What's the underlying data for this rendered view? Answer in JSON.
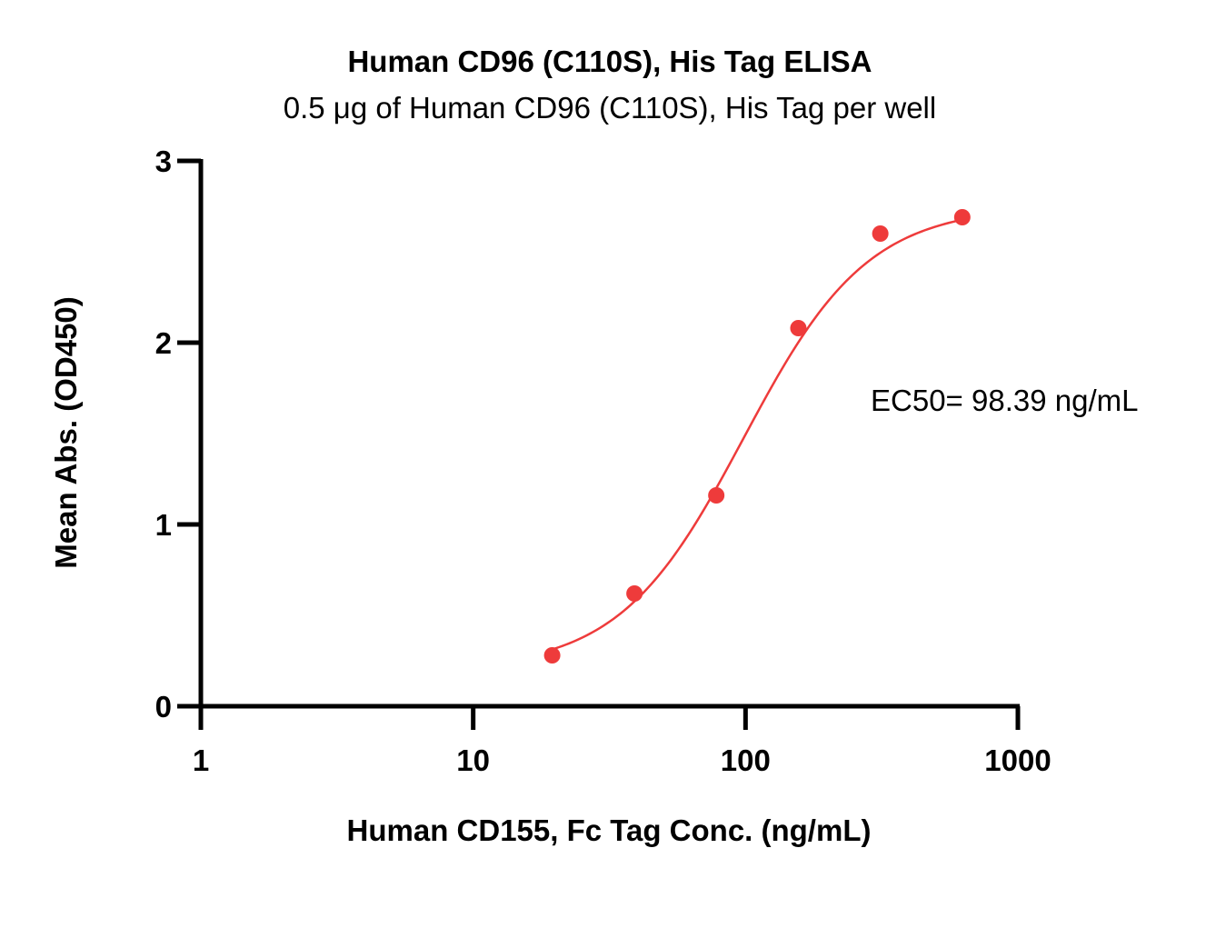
{
  "chart_data": {
    "type": "scatter",
    "title": "Human CD96 (C110S), His Tag ELISA",
    "subtitle": "0.5 μg of Human CD96 (C110S), His Tag per well",
    "xlabel": "Human CD155, Fc Tag Conc. (ng/mL)",
    "ylabel": "Mean Abs. (OD450)",
    "x_scale": "log",
    "xlim": [
      1,
      1000
    ],
    "ylim": [
      0,
      3
    ],
    "x_ticks": [
      "1",
      "10",
      "100",
      "1000"
    ],
    "y_ticks": [
      "0",
      "1",
      "2",
      "3"
    ],
    "grid": false,
    "color": "#ee3b3b",
    "series": [
      {
        "points": [
          {
            "x": 19.5,
            "y": 0.28
          },
          {
            "x": 39.1,
            "y": 0.62
          },
          {
            "x": 78.1,
            "y": 1.16
          },
          {
            "x": 156.3,
            "y": 2.08
          },
          {
            "x": 312.5,
            "y": 2.6
          },
          {
            "x": 625,
            "y": 2.69
          }
        ]
      }
    ],
    "fit": {
      "model": "4PL",
      "bottom": 0.2,
      "top": 2.75,
      "ec50": 98.39,
      "hill": 1.9
    },
    "annotation": "EC50= 98.39 ng/mL"
  }
}
